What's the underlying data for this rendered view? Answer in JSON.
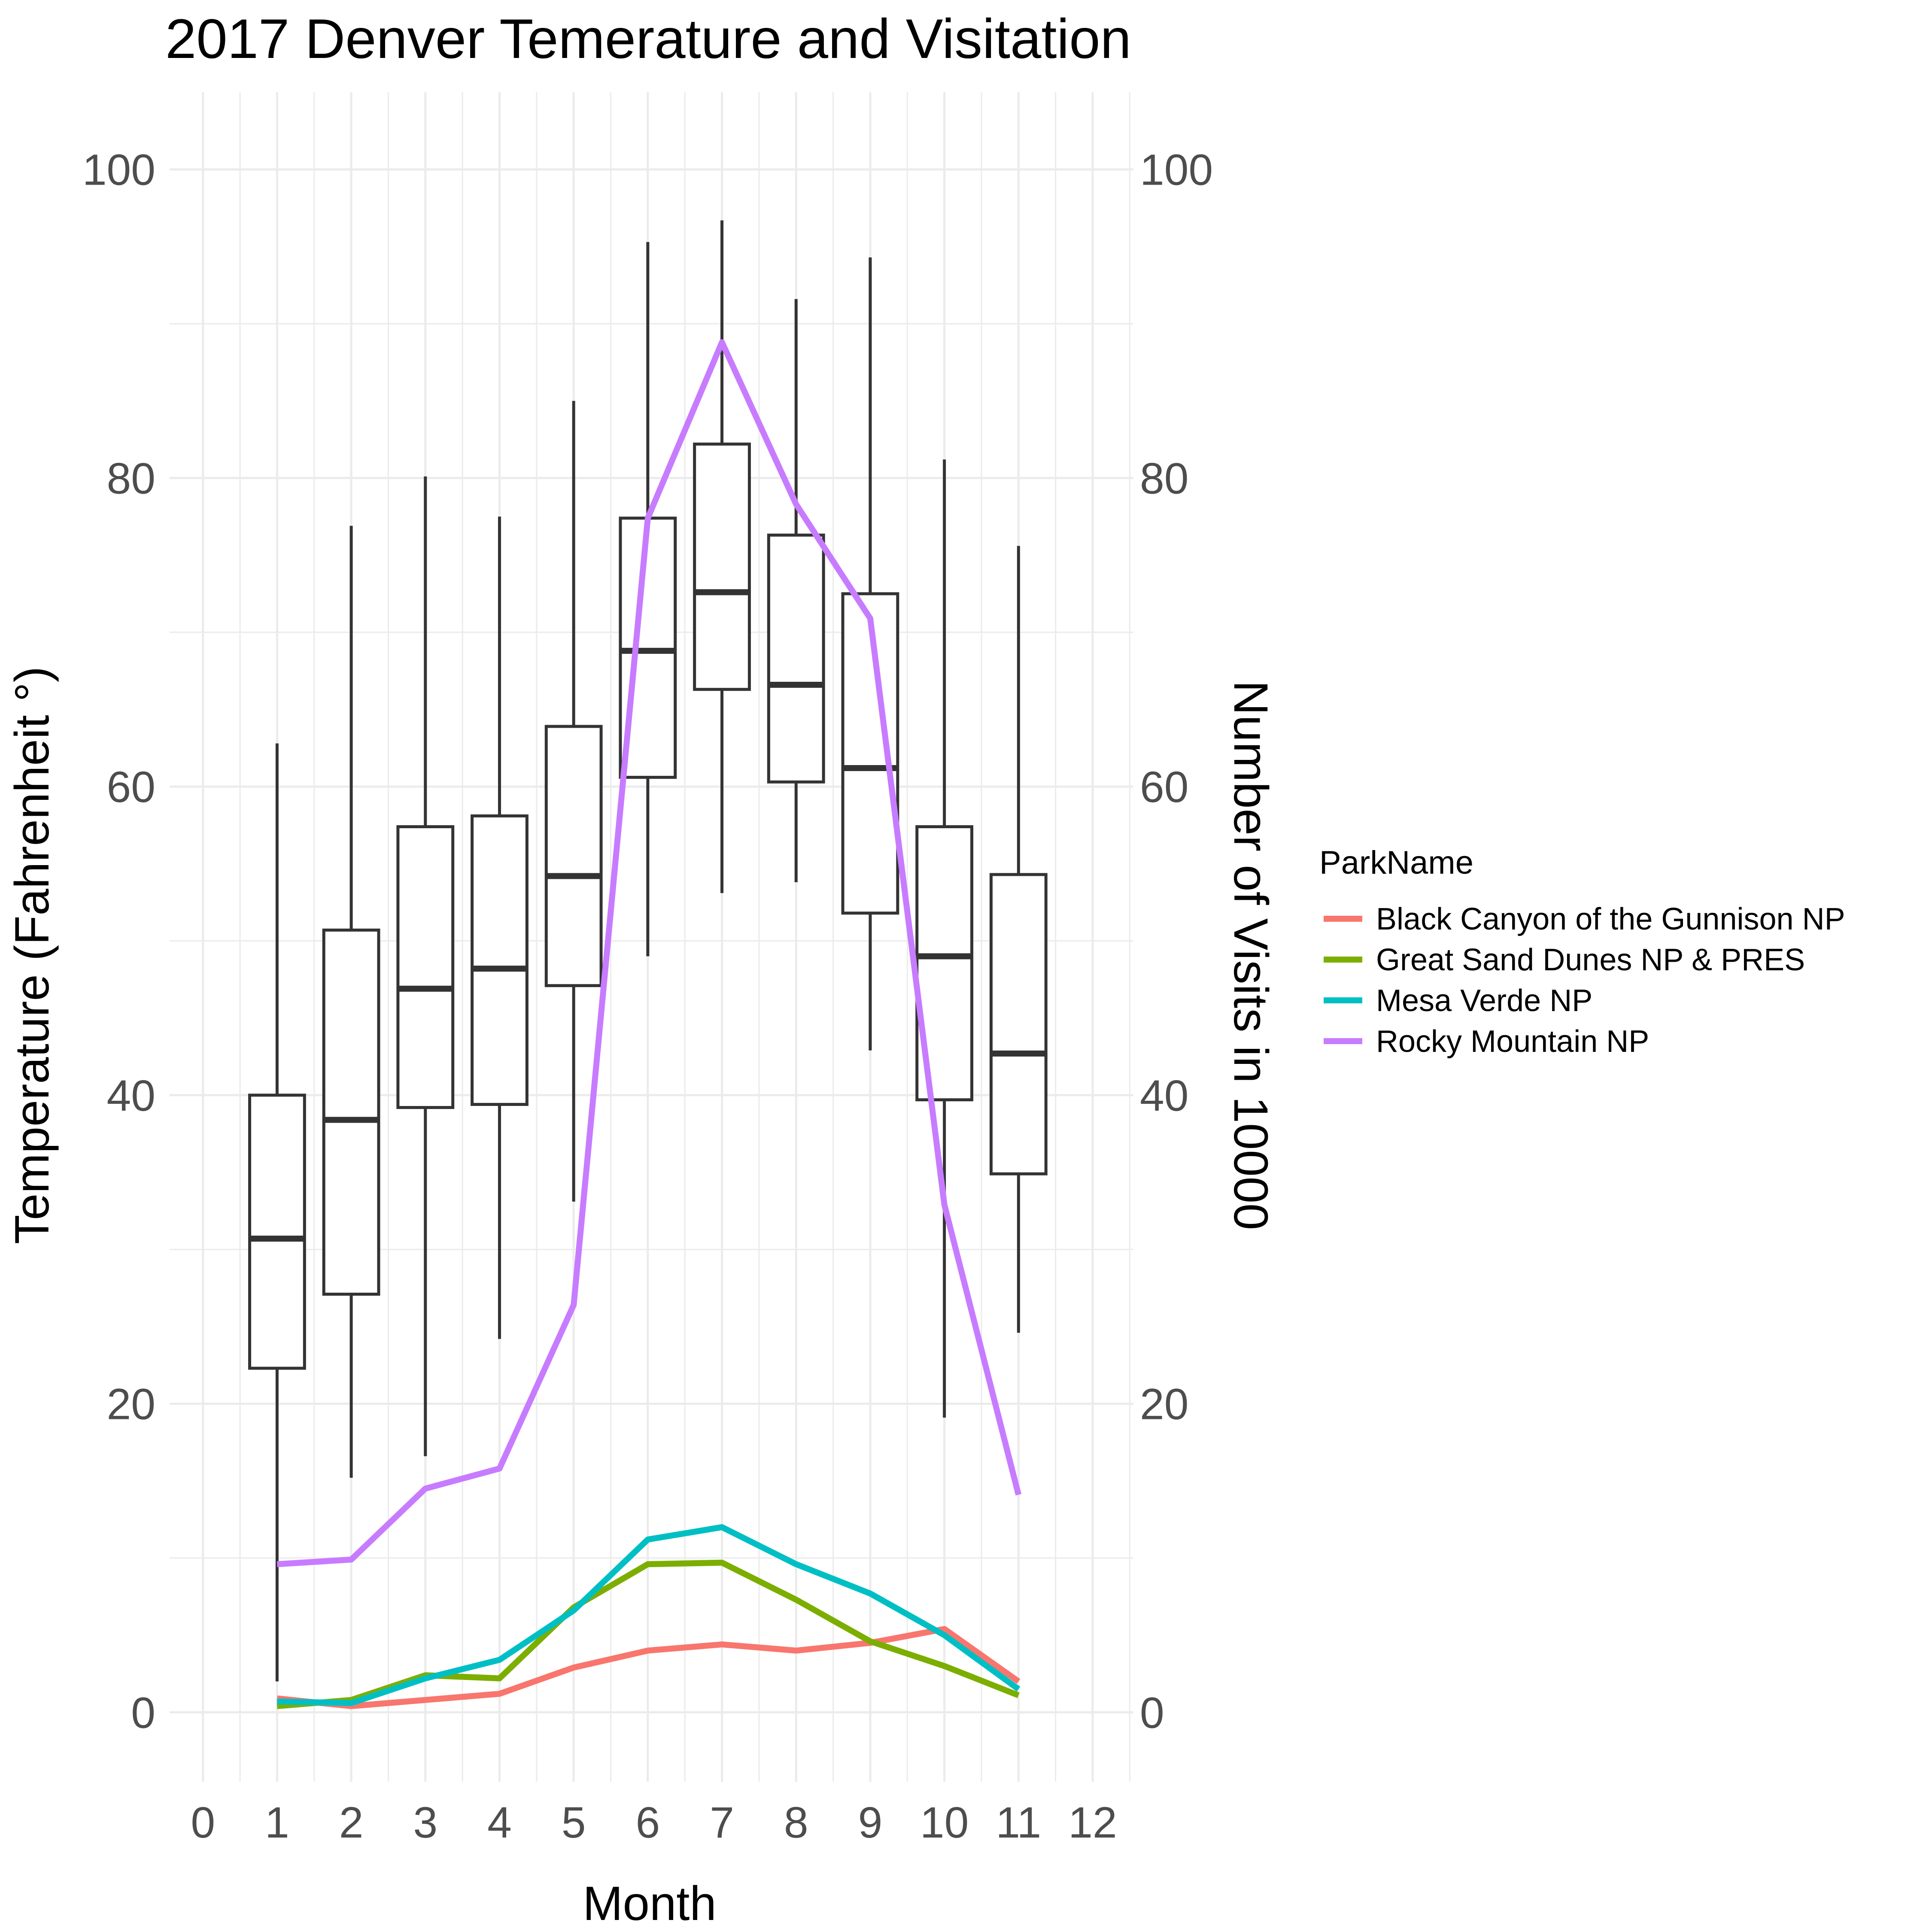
{
  "chart_data": {
    "type": "box+line",
    "title": "2017 Denver Temerature and Visitation",
    "xlabel": "Month",
    "ylabel_left": "Temperature (Fahrenheit °)",
    "ylabel_right": "Number of Visits in 10000",
    "x_ticks": [
      "0",
      "1",
      "2",
      "3",
      "4",
      "5",
      "6",
      "7",
      "8",
      "9",
      "10",
      "11",
      "12"
    ],
    "y_ticks": [
      "0",
      "20",
      "40",
      "60",
      "80",
      "100"
    ],
    "xlim": [
      -0.45,
      12.55
    ],
    "ylim": [
      -4.5,
      105
    ],
    "grid": true,
    "legend_position": "right",
    "legend_title": "ParkName",
    "boxplots": [
      {
        "month": 1,
        "min": 2,
        "q1": 22.3,
        "median": 30.7,
        "q3": 40,
        "max": 62.8
      },
      {
        "month": 2,
        "min": 15.2,
        "q1": 27.1,
        "median": 38.4,
        "q3": 50.7,
        "max": 76.9
      },
      {
        "month": 3,
        "min": 16.6,
        "q1": 39.2,
        "median": 46.9,
        "q3": 57.4,
        "max": 80.1
      },
      {
        "month": 4,
        "min": 24.2,
        "q1": 39.4,
        "median": 48.2,
        "q3": 58.1,
        "max": 77.5
      },
      {
        "month": 5,
        "min": 33.1,
        "q1": 47.1,
        "median": 54.2,
        "q3": 63.9,
        "max": 85.0
      },
      {
        "month": 6,
        "min": 49.0,
        "q1": 60.6,
        "median": 68.8,
        "q3": 77.4,
        "max": 95.3
      },
      {
        "month": 7,
        "min": 53.1,
        "q1": 66.3,
        "median": 72.6,
        "q3": 82.2,
        "max": 96.7
      },
      {
        "month": 8,
        "min": 53.8,
        "q1": 60.3,
        "median": 66.6,
        "q3": 76.3,
        "max": 91.6
      },
      {
        "month": 9,
        "min": 42.9,
        "q1": 51.8,
        "median": 61.2,
        "q3": 72.5,
        "max": 94.3
      },
      {
        "month": 10,
        "min": 19.1,
        "q1": 39.7,
        "median": 49.0,
        "q3": 57.4,
        "max": 81.2
      },
      {
        "month": 11,
        "min": 24.6,
        "q1": 34.9,
        "median": 42.7,
        "q3": 54.3,
        "max": 75.6
      }
    ],
    "series": [
      {
        "name": "Black Canyon of the Gunnison NP",
        "color": "#f8766d",
        "x": [
          1,
          2,
          3,
          4,
          5,
          6,
          7,
          8,
          9,
          10,
          11
        ],
        "values": [
          0.9,
          0.4,
          0.8,
          1.2,
          2.9,
          4.0,
          4.4,
          4.0,
          4.5,
          5.4,
          2.0
        ]
      },
      {
        "name": "Great Sand Dunes NP & PRES",
        "color": "#7cae00",
        "x": [
          1,
          2,
          3,
          4,
          5,
          6,
          7,
          8,
          9,
          10,
          11
        ],
        "values": [
          0.4,
          0.8,
          2.4,
          2.2,
          6.8,
          9.6,
          9.7,
          7.3,
          4.6,
          3.0,
          1.1
        ]
      },
      {
        "name": "Mesa Verde NP",
        "color": "#00bfc4",
        "x": [
          1,
          2,
          3,
          4,
          5,
          6,
          7,
          8,
          9,
          10,
          11
        ],
        "values": [
          0.7,
          0.6,
          2.2,
          3.4,
          6.6,
          11.2,
          12.0,
          9.6,
          7.7,
          5.0,
          1.5
        ]
      },
      {
        "name": "Rocky Mountain NP",
        "color": "#c77cff",
        "x": [
          1,
          2,
          3,
          4,
          5,
          6,
          7,
          8,
          9,
          10,
          11
        ],
        "values": [
          9.6,
          9.9,
          14.5,
          15.8,
          26.4,
          77.4,
          88.8,
          78.3,
          70.9,
          32.9,
          14.1
        ]
      }
    ]
  }
}
